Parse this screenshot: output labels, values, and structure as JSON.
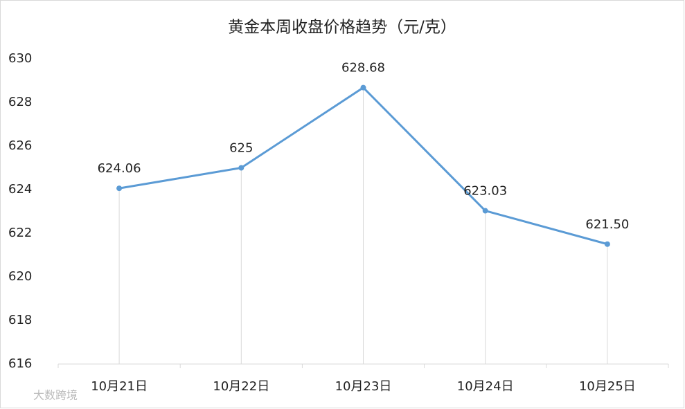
{
  "chart_data": {
    "type": "line",
    "title": "黄金本周收盘价格趋势（元/克）",
    "categories": [
      "10月21日",
      "10月22日",
      "10月23日",
      "10月24日",
      "10月25日"
    ],
    "values": [
      624.06,
      625,
      628.68,
      623.03,
      621.5
    ],
    "value_labels": [
      "624.06",
      "625",
      "628.68",
      "623.03",
      "621.50"
    ],
    "color": "#5b9bd5",
    "ylim": [
      616,
      630
    ],
    "yticks": [
      616,
      618,
      620,
      622,
      624,
      626,
      628,
      630
    ],
    "drop_lines": true,
    "watermark": "大数跨境"
  }
}
